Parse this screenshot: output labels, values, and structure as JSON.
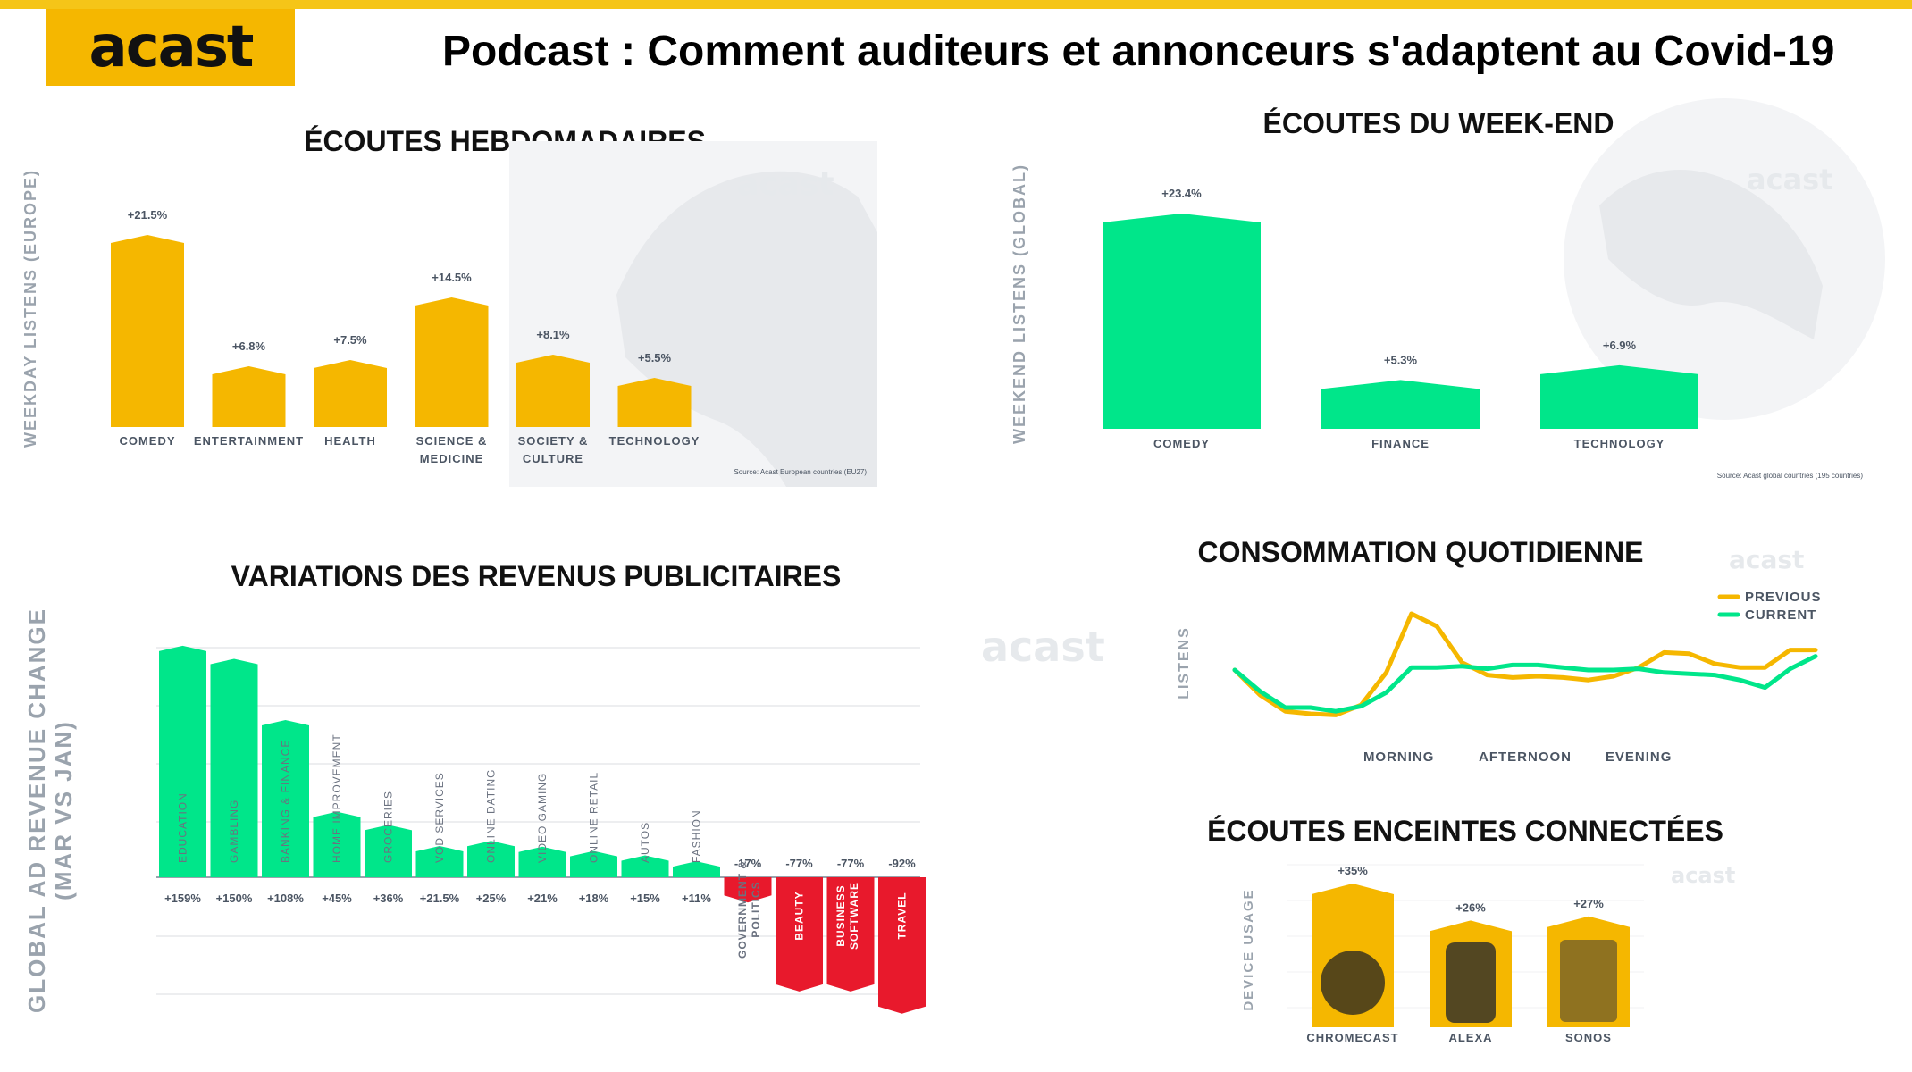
{
  "header": {
    "logo_text": "acast",
    "title": "Podcast : Comment auditeurs et annonceurs s'adaptent au Covid-19"
  },
  "colors": {
    "yellow": "#f5b700",
    "green": "#00e68a",
    "red": "#e8192c",
    "axis_label": "#9aa3ad"
  },
  "panels": {
    "weekday": {
      "title": "ÉCOUTES HEBDOMADAIRES",
      "ylabel": "WEEKDAY LISTENS (EUROPE)",
      "source": "Source: Acast European countries (EU27)",
      "watermark": "acast"
    },
    "weekend": {
      "title": "ÉCOUTES DU WEEK-END",
      "ylabel": "WEEKEND LISTENS (GLOBAL)",
      "source": "Source: Acast global countries (195 countries)",
      "watermark": "acast"
    },
    "revenue": {
      "title": "VARIATIONS DES REVENUS PUBLICITAIRES",
      "ylabel_line1": "GLOBAL AD REVENUE CHANGE",
      "ylabel_line2": "(MAR VS JAN)",
      "watermark": "acast"
    },
    "daily": {
      "title": "CONSOMMATION QUOTIDIENNE",
      "ylabel": "LISTENS",
      "watermark": "acast"
    },
    "speakers": {
      "title": "ÉCOUTES ENCEINTES CONNECTÉES",
      "ylabel": "DEVICE USAGE",
      "watermark": "acast"
    }
  },
  "chart_data": [
    {
      "id": "weekday",
      "type": "bar",
      "title": "ÉCOUTES HEBDOMADAIRES",
      "ylabel": "WEEKDAY LISTENS (EUROPE)",
      "categories": [
        [
          "COMEDY"
        ],
        [
          "ENTERTAINMENT"
        ],
        [
          "HEALTH"
        ],
        [
          "SCIENCE &",
          "MEDICINE"
        ],
        [
          "SOCIETY &",
          "CULTURE"
        ],
        [
          "TECHNOLOGY"
        ]
      ],
      "values": [
        21.5,
        6.8,
        7.5,
        14.5,
        8.1,
        5.5
      ],
      "labels": [
        "+21.5%",
        "+6.8%",
        "+7.5%",
        "+14.5%",
        "+8.1%",
        "+5.5%"
      ],
      "color": "#f5b700"
    },
    {
      "id": "weekend",
      "type": "bar",
      "title": "ÉCOUTES DU WEEK-END",
      "ylabel": "WEEKEND LISTENS (GLOBAL)",
      "categories": [
        [
          "COMEDY"
        ],
        [
          "FINANCE"
        ],
        [
          "TECHNOLOGY"
        ]
      ],
      "values": [
        23.4,
        5.3,
        6.9
      ],
      "labels": [
        "+23.4%",
        "+5.3%",
        "+6.9%"
      ],
      "color": "#00e68a"
    },
    {
      "id": "revenue",
      "type": "bar",
      "title": "VARIATIONS DES REVENUS PUBLICITAIRES",
      "ylabel": "GLOBAL AD REVENUE CHANGE (MAR VS JAN)",
      "categories": [
        [
          "EDUCATION"
        ],
        [
          "GAMBLING"
        ],
        [
          "BANKING & FINANCE"
        ],
        [
          "HOME IMPROVEMENT"
        ],
        [
          "GROCERIES"
        ],
        [
          "VOD SERVICES"
        ],
        [
          "ONLINE DATING"
        ],
        [
          "VIDEO GAMING"
        ],
        [
          "ONLINE RETAIL"
        ],
        [
          "AUTOS"
        ],
        [
          "FASHION"
        ],
        [
          "GOVERNMENT &",
          "POLITICS"
        ],
        [
          "BEAUTY"
        ],
        [
          "BUSINESS",
          "SOFTWARE"
        ],
        [
          "TRAVEL"
        ]
      ],
      "values": [
        159,
        150,
        108,
        45,
        36,
        21.5,
        25,
        21,
        18,
        15,
        11,
        -17,
        -77,
        -77,
        -92
      ],
      "labels": [
        "+159%",
        "+150%",
        "+108%",
        "+45%",
        "+36%",
        "+21.5%",
        "+25%",
        "+21%",
        "+18%",
        "+15%",
        "+11%",
        "-17%",
        "-77%",
        "-77%",
        "-92%"
      ],
      "positive_color": "#00e68a",
      "negative_color": "#e8192c",
      "ylim": [
        -95,
        160
      ]
    },
    {
      "id": "daily",
      "type": "line",
      "title": "CONSOMMATION QUOTIDIENNE",
      "ylabel": "LISTENS",
      "x": [
        0,
        1,
        2,
        3,
        4,
        5,
        6,
        7,
        8,
        9,
        10,
        11,
        12,
        13,
        14,
        15,
        16,
        17,
        18,
        19,
        20,
        21,
        22,
        23
      ],
      "x_tick_labels": [
        {
          "at": 6.5,
          "label": "MORNING"
        },
        {
          "at": 11.5,
          "label": "AFTERNOON"
        },
        {
          "at": 16,
          "label": "EVENING"
        }
      ],
      "ylim": [
        0,
        100
      ],
      "series": [
        {
          "name": "PREVIOUS",
          "color": "#f5b700",
          "values": [
            50,
            30,
            17,
            15,
            14,
            22,
            48,
            95,
            85,
            56,
            46,
            44,
            45,
            44,
            42,
            45,
            52,
            64,
            63,
            55,
            52,
            52,
            66,
            66
          ]
        },
        {
          "name": "CURRENT",
          "color": "#00e68a",
          "values": [
            50,
            33,
            20,
            20,
            17,
            21,
            32,
            52,
            52,
            53,
            51,
            54,
            54,
            52,
            50,
            50,
            51,
            48,
            47,
            46,
            42,
            36,
            51,
            61
          ]
        }
      ],
      "legend": "top-right"
    },
    {
      "id": "speakers",
      "type": "bar",
      "title": "ÉCOUTES ENCEINTES CONNECTÉES",
      "ylabel": "DEVICE USAGE",
      "categories": [
        [
          "CHROMECAST"
        ],
        [
          "ALEXA"
        ],
        [
          "SONOS"
        ]
      ],
      "values": [
        35,
        26,
        27
      ],
      "labels": [
        "+35%",
        "+26%",
        "+27%"
      ],
      "color": "#f5b700"
    }
  ]
}
